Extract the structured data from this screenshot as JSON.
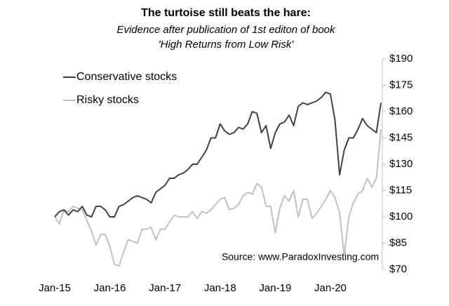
{
  "chart_data": {
    "type": "line",
    "title": "The turtoise still beats the hare:",
    "subtitle": [
      "Evidence after publication of 1st editon of book",
      "'High Returns from Low Risk'"
    ],
    "annotation": "Source: www.ParadoxInvesting.com",
    "categories": [
      "Jan-15",
      null,
      null,
      null,
      null,
      null,
      null,
      null,
      null,
      null,
      null,
      null,
      "Jan-16",
      null,
      null,
      null,
      null,
      null,
      null,
      null,
      null,
      null,
      null,
      null,
      "Jan-17",
      null,
      null,
      null,
      null,
      null,
      null,
      null,
      null,
      null,
      null,
      null,
      "Jan-18",
      null,
      null,
      null,
      null,
      null,
      null,
      null,
      null,
      null,
      null,
      null,
      "Jan-19",
      null,
      null,
      null,
      null,
      null,
      null,
      null,
      null,
      null,
      null,
      null,
      "Jan-20",
      null,
      null,
      null,
      null,
      null,
      null,
      null,
      null,
      null,
      null,
      null
    ],
    "series": [
      {
        "name": "Conservative stocks",
        "color": "#404040",
        "values": [
          100,
          103,
          104,
          101,
          104,
          103,
          106,
          101,
          100,
          106,
          106,
          104,
          100,
          100,
          106,
          107,
          109,
          111,
          112,
          111,
          110,
          108,
          114,
          116,
          118,
          122,
          122,
          124,
          125,
          127,
          130,
          130,
          134,
          138,
          145,
          145,
          153,
          149,
          147,
          148,
          151,
          150,
          153,
          160,
          159,
          148,
          152,
          139,
          148,
          153,
          154,
          158,
          152,
          163,
          165,
          164,
          165,
          166,
          168,
          171,
          170,
          155,
          124,
          138,
          145,
          145,
          150,
          156,
          152,
          150,
          148,
          165
        ]
      },
      {
        "name": "Risky stocks",
        "color": "#c0c0c0",
        "values": [
          100,
          96,
          104,
          103,
          106,
          105,
          104,
          98,
          92,
          84,
          90,
          90,
          83,
          73,
          72,
          80,
          87,
          86,
          85,
          93,
          93,
          94,
          87,
          93,
          93,
          97,
          101,
          100,
          100,
          100,
          103,
          99,
          103,
          102,
          104,
          107,
          110,
          111,
          104,
          105,
          107,
          112,
          114,
          113,
          119,
          117,
          106,
          106,
          91,
          105,
          112,
          109,
          115,
          100,
          110,
          110,
          99,
          102,
          106,
          110,
          115,
          111,
          102,
          78,
          100,
          108,
          113,
          115,
          122,
          117,
          122,
          150
        ]
      }
    ],
    "ylim": [
      70,
      190
    ],
    "yticks": [
      {
        "value": 70,
        "label": "$70"
      },
      {
        "value": 85,
        "label": "$85"
      },
      {
        "value": 100,
        "label": "$100"
      },
      {
        "value": 115,
        "label": "$115"
      },
      {
        "value": 130,
        "label": "$130"
      },
      {
        "value": 145,
        "label": "$145"
      },
      {
        "value": 160,
        "label": "$160"
      },
      {
        "value": 175,
        "label": "$175"
      },
      {
        "value": 190,
        "label": "$190"
      }
    ],
    "y_axis_side": "right",
    "legend": "upper left",
    "grid": false
  }
}
